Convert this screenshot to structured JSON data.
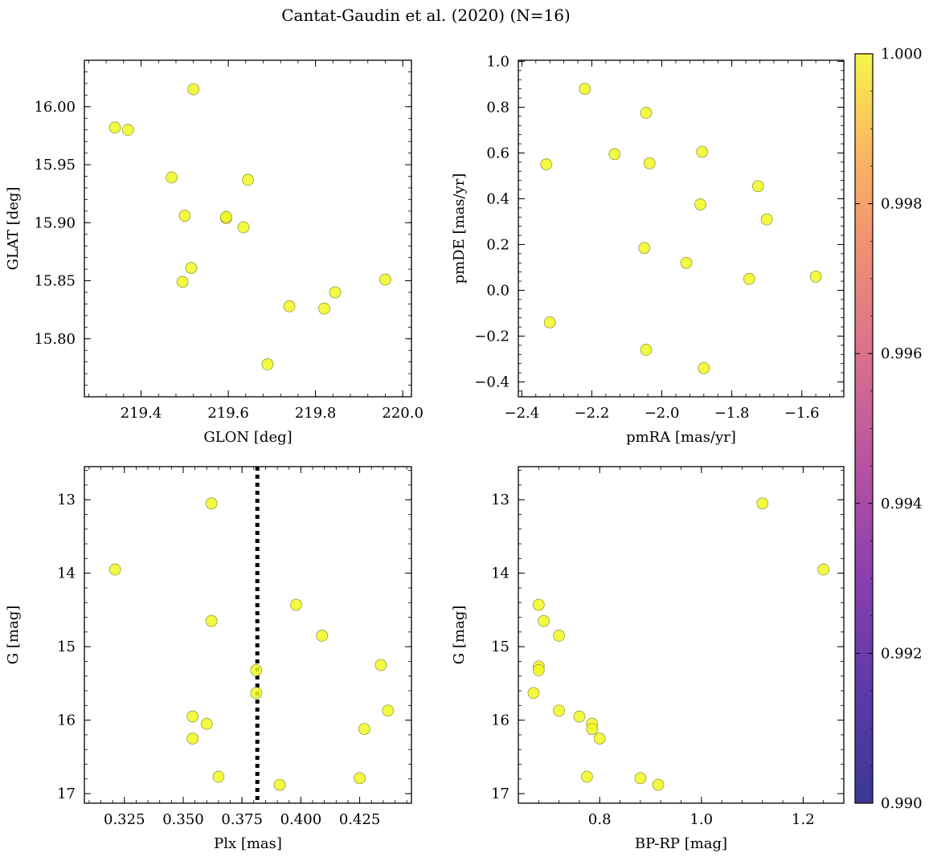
{
  "title": "Cantat-Gaudin et al. (2020) (N=16)",
  "chart_data": [
    {
      "type": "scatter",
      "xlabel": "GLON [deg]",
      "ylabel": "GLAT [deg]",
      "xlim": [
        219.27,
        220.02
      ],
      "ylim": [
        15.75,
        16.04
      ],
      "xticks": [
        "219.4",
        "219.6",
        "219.8",
        "220.0"
      ],
      "yticks": [
        "15.80",
        "15.85",
        "15.90",
        "15.95",
        "16.00"
      ],
      "x": [
        219.52,
        219.34,
        219.37,
        219.47,
        219.645,
        219.5,
        219.595,
        219.635,
        219.515,
        219.495,
        219.845,
        219.96,
        219.74,
        219.82,
        219.69,
        219.595
      ],
      "y": [
        16.015,
        15.982,
        15.98,
        15.939,
        15.937,
        15.906,
        15.904,
        15.896,
        15.861,
        15.849,
        15.84,
        15.851,
        15.828,
        15.826,
        15.778,
        15.905
      ]
    },
    {
      "type": "scatter",
      "xlabel": "pmRA [mas/yr]",
      "ylabel": "pmDE [mas/yr]",
      "xlim": [
        -2.41,
        -1.48
      ],
      "ylim": [
        -0.465,
        1.005
      ],
      "xticks": [
        "−2.4",
        "−2.2",
        "−2.0",
        "−1.8",
        "−1.6"
      ],
      "yticks": [
        "−0.4",
        "−0.2",
        "0.0",
        "0.2",
        "0.4",
        "0.6",
        "0.8",
        "1.0"
      ],
      "x": [
        -2.22,
        -2.045,
        -2.135,
        -1.885,
        -2.33,
        -2.035,
        -1.725,
        -1.89,
        -1.7,
        -2.05,
        -1.93,
        -1.75,
        -1.56,
        -2.32,
        -2.045,
        -1.88
      ],
      "y": [
        0.88,
        0.775,
        0.595,
        0.605,
        0.55,
        0.555,
        0.455,
        0.375,
        0.31,
        0.185,
        0.12,
        0.05,
        0.06,
        -0.14,
        -0.26,
        -0.34
      ]
    },
    {
      "type": "scatter",
      "xlabel": "Plx [mas]",
      "ylabel": "G [mag]",
      "xlim": [
        0.308,
        0.447
      ],
      "ylim": [
        17.13,
        12.55
      ],
      "ylim_note": "inverted",
      "xticks": [
        "0.325",
        "0.350",
        "0.375",
        "0.400",
        "0.425"
      ],
      "yticks": [
        "13",
        "14",
        "15",
        "16",
        "17"
      ],
      "vline_x": 0.3815,
      "x": [
        0.362,
        0.321,
        0.362,
        0.398,
        0.409,
        0.381,
        0.381,
        0.434,
        0.354,
        0.36,
        0.354,
        0.437,
        0.427,
        0.365,
        0.425,
        0.391
      ],
      "y": [
        13.05,
        13.95,
        14.65,
        14.43,
        14.85,
        15.32,
        15.63,
        15.25,
        15.95,
        16.05,
        16.25,
        15.87,
        16.12,
        16.77,
        16.79,
        16.88
      ]
    },
    {
      "type": "scatter",
      "xlabel": "BP-RP [mag]",
      "ylabel": "G [mag]",
      "xlim": [
        0.64,
        1.28
      ],
      "ylim": [
        17.13,
        12.55
      ],
      "ylim_note": "inverted",
      "xticks": [
        "0.8",
        "1.0",
        "1.2"
      ],
      "yticks": [
        "13",
        "14",
        "15",
        "16",
        "17"
      ],
      "x": [
        1.12,
        1.24,
        0.68,
        0.69,
        0.72,
        0.68,
        0.68,
        0.67,
        0.72,
        0.76,
        0.785,
        0.785,
        0.8,
        0.775,
        0.88,
        0.915
      ],
      "y": [
        13.05,
        13.95,
        14.43,
        14.65,
        14.85,
        15.27,
        15.32,
        15.63,
        15.87,
        15.95,
        16.05,
        16.12,
        16.25,
        16.77,
        16.79,
        16.88
      ]
    }
  ],
  "colorbar": {
    "min": 0.99,
    "max": 1.0,
    "ticks": [
      "0.990",
      "0.992",
      "0.994",
      "0.996",
      "0.998",
      "1.000"
    ],
    "colormap": "plasma"
  },
  "marker_color": "#f0f921",
  "marker_edge": "#9a9a40"
}
